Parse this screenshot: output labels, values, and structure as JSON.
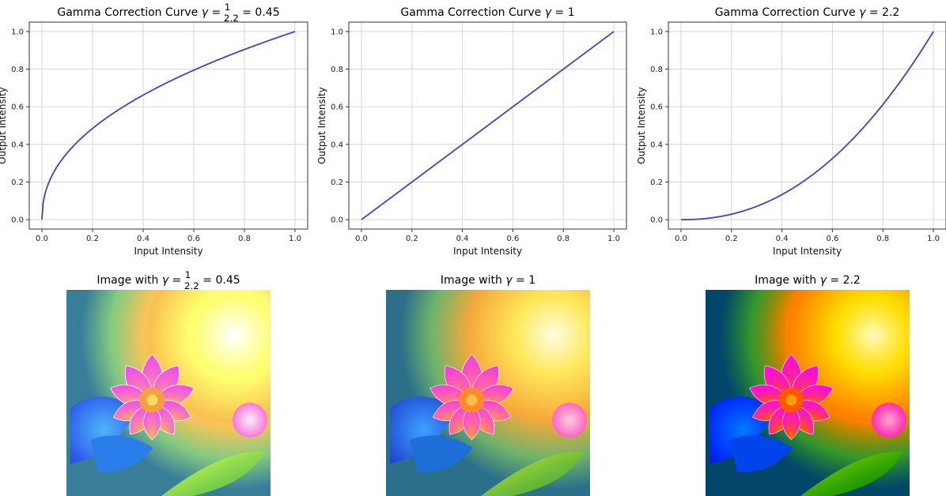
{
  "chart_data": [
    {
      "type": "line",
      "title_prefix": "Gamma Correction Curve ",
      "title_gamma": "γ",
      "title_eq": " = ",
      "title_frac_num": "1",
      "title_frac_den": "2.2",
      "title_suffix": " = 0.45",
      "gamma": 0.45,
      "xlabel": "Input Intensity",
      "ylabel": "Output Intensity",
      "xlim": [
        0,
        1
      ],
      "ylim": [
        0,
        1
      ],
      "xticks": [
        "0.0",
        "0.2",
        "0.4",
        "0.6",
        "0.8",
        "1.0"
      ],
      "yticks": [
        "0.0",
        "0.2",
        "0.4",
        "0.6",
        "0.8",
        "1.0"
      ],
      "series": [
        {
          "x": [
            0,
            0.1,
            0.2,
            0.3,
            0.4,
            0.5,
            0.6,
            0.7,
            0.8,
            0.9,
            1.0
          ],
          "y": [
            0,
            0.355,
            0.485,
            0.582,
            0.662,
            0.732,
            0.795,
            0.852,
            0.904,
            0.954,
            1.0
          ]
        }
      ],
      "grid": true,
      "line_color": "#4b3fbf"
    },
    {
      "type": "line",
      "title_prefix": "Gamma Correction Curve ",
      "title_gamma": "γ",
      "title_eq": " = ",
      "title_frac_num": "",
      "title_frac_den": "",
      "title_suffix": "1",
      "gamma": 1,
      "xlabel": "Input Intensity",
      "ylabel": "Output Intensity",
      "xlim": [
        0,
        1
      ],
      "ylim": [
        0,
        1
      ],
      "xticks": [
        "0.0",
        "0.2",
        "0.4",
        "0.6",
        "0.8",
        "1.0"
      ],
      "yticks": [
        "0.0",
        "0.2",
        "0.4",
        "0.6",
        "0.8",
        "1.0"
      ],
      "series": [
        {
          "x": [
            0,
            0.1,
            0.2,
            0.3,
            0.4,
            0.5,
            0.6,
            0.7,
            0.8,
            0.9,
            1.0
          ],
          "y": [
            0,
            0.1,
            0.2,
            0.3,
            0.4,
            0.5,
            0.6,
            0.7,
            0.8,
            0.9,
            1.0
          ]
        }
      ],
      "grid": true,
      "line_color": "#4b3fbf"
    },
    {
      "type": "line",
      "title_prefix": "Gamma Correction Curve ",
      "title_gamma": "γ",
      "title_eq": " = ",
      "title_frac_num": "",
      "title_frac_den": "",
      "title_suffix": "2.2",
      "gamma": 2.2,
      "xlabel": "Input Intensity",
      "ylabel": "Output Intensity",
      "xlim": [
        0,
        1
      ],
      "ylim": [
        0,
        1
      ],
      "xticks": [
        "0.0",
        "0.2",
        "0.4",
        "0.6",
        "0.8",
        "1.0"
      ],
      "yticks": [
        "0.0",
        "0.2",
        "0.4",
        "0.6",
        "0.8",
        "1.0"
      ],
      "series": [
        {
          "x": [
            0,
            0.1,
            0.2,
            0.3,
            0.4,
            0.5,
            0.6,
            0.7,
            0.8,
            0.9,
            1.0
          ],
          "y": [
            0,
            0.006,
            0.029,
            0.071,
            0.133,
            0.218,
            0.325,
            0.456,
            0.612,
            0.793,
            1.0
          ]
        }
      ],
      "grid": true,
      "line_color": "#4b3fbf"
    }
  ],
  "images": [
    {
      "title_prefix": "Image with ",
      "title_gamma": "γ",
      "title_eq": " = ",
      "title_frac_num": "1",
      "title_frac_den": "2.2",
      "title_suffix": " = 0.45",
      "icon": "flower-photo",
      "brightness": 1.15,
      "saturation": 0.9
    },
    {
      "title_prefix": "Image with ",
      "title_gamma": "γ",
      "title_eq": " = ",
      "title_frac_num": "",
      "title_frac_den": "",
      "title_suffix": "1",
      "icon": "flower-photo",
      "brightness": 1.0,
      "saturation": 1.0
    },
    {
      "title_prefix": "Image with ",
      "title_gamma": "γ",
      "title_eq": " = ",
      "title_frac_num": "",
      "title_frac_den": "",
      "title_suffix": "2.2",
      "icon": "flower-photo",
      "brightness": 0.82,
      "saturation": 1.3
    }
  ]
}
